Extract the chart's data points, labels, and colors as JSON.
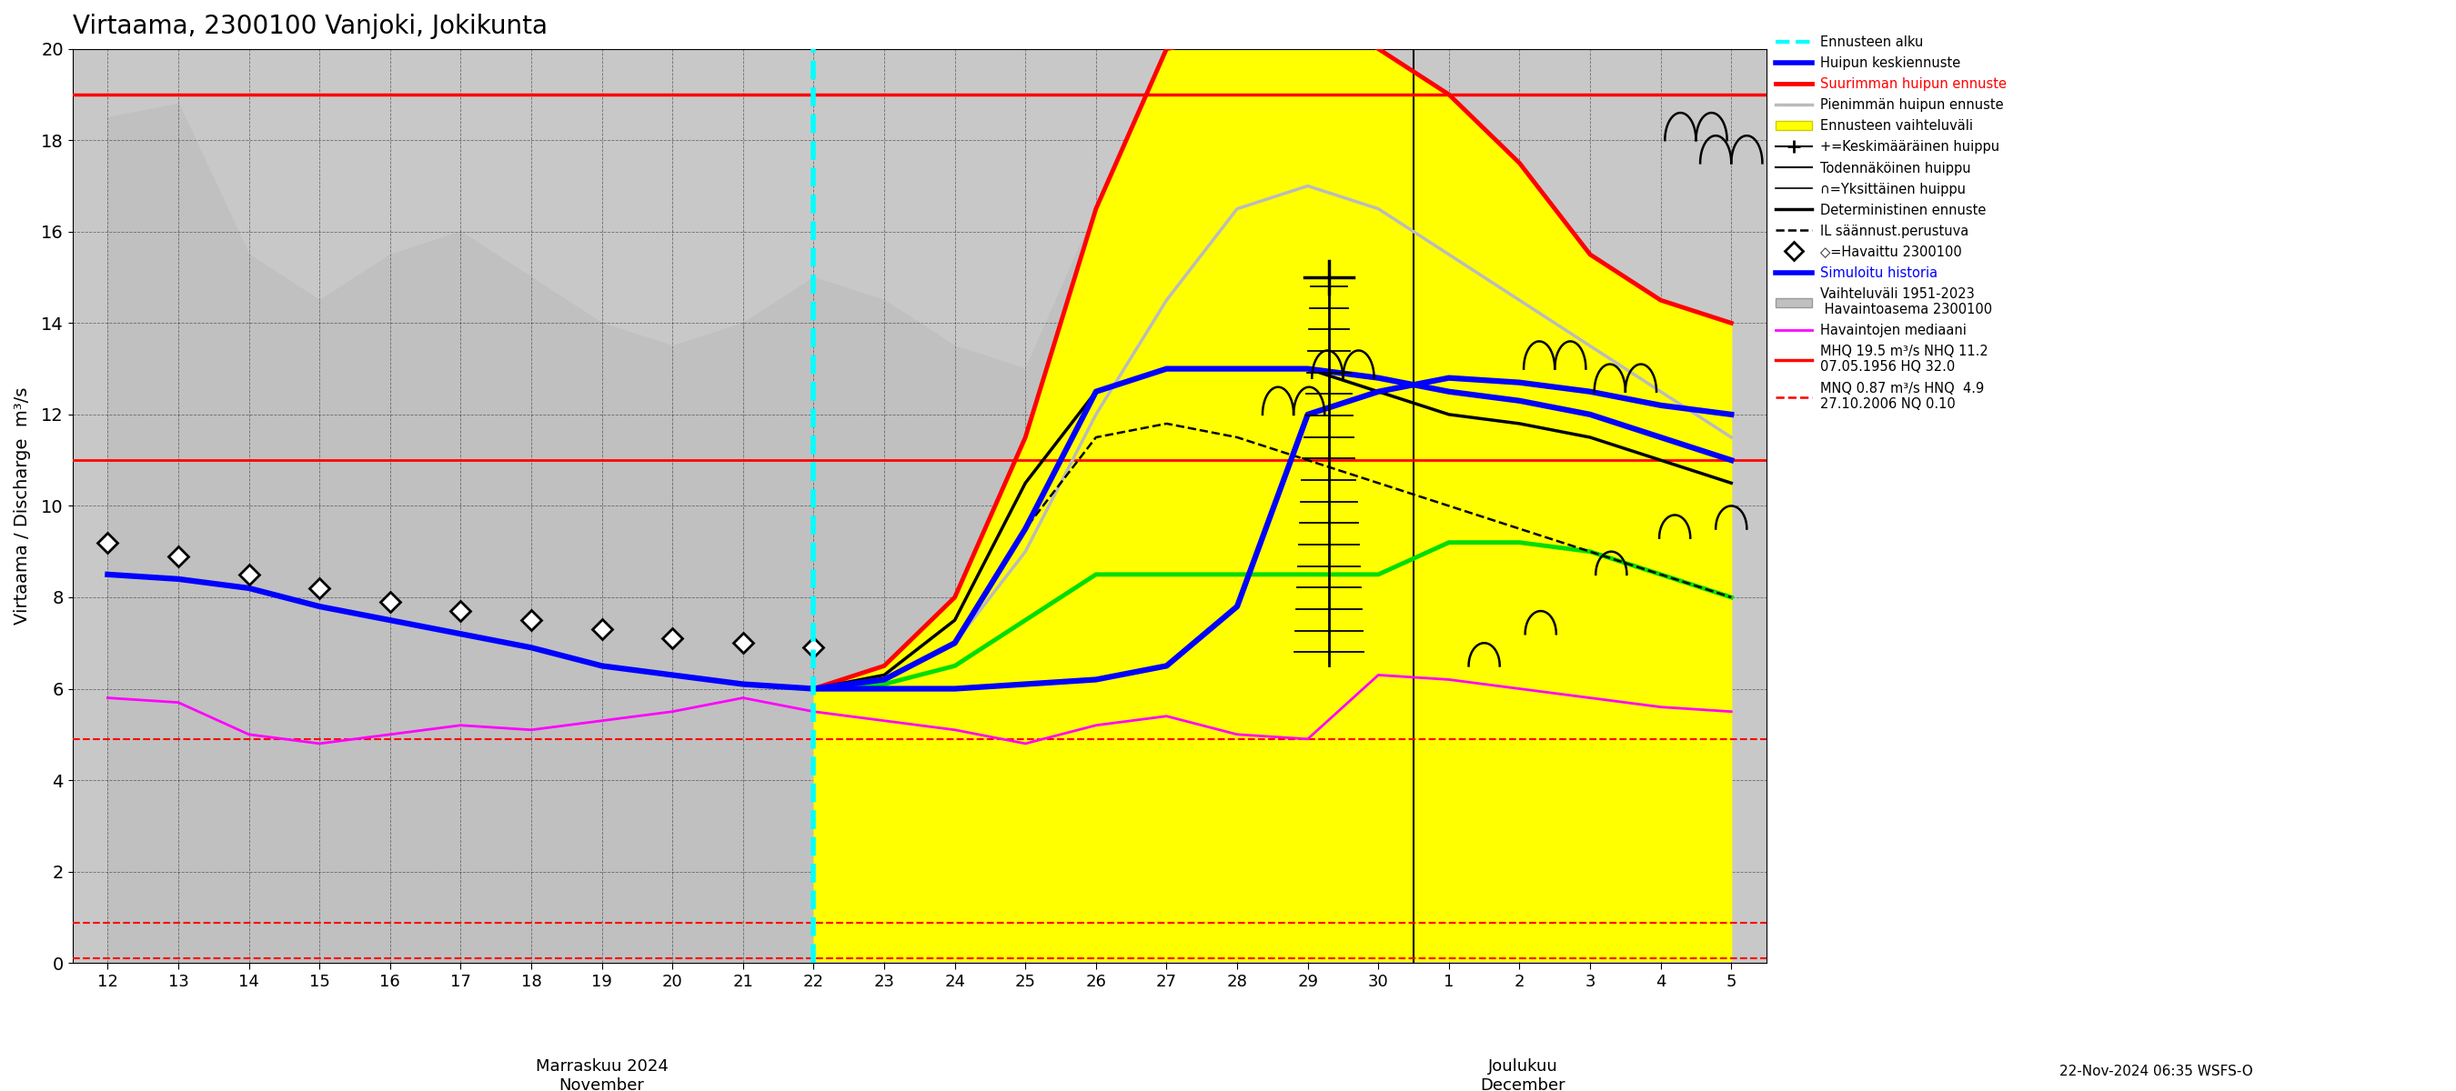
{
  "title": "Virtaama, 2300100 Vanjoki, Jokikunta",
  "ylabel": "Virtaama / Discharge  m³/s",
  "ylim": [
    0,
    20
  ],
  "yticks": [
    0,
    2,
    4,
    6,
    8,
    10,
    12,
    14,
    16,
    18,
    20
  ],
  "bg_color": "#c8c8c8",
  "red_hline_solid": 19.0,
  "red_hline_solid2": 11.0,
  "red_hline_dash1": 4.9,
  "red_hline_dash2": 0.87,
  "red_hline_dash3": 0.1,
  "cyan_vline_x": 10,
  "nov_days": [
    12,
    13,
    14,
    15,
    16,
    17,
    18,
    19,
    20,
    21,
    22,
    23,
    24,
    25,
    26,
    27,
    28,
    29,
    30
  ],
  "dec_days": [
    1,
    2,
    3,
    4,
    5
  ],
  "hist_upper": [
    18.5,
    18.8,
    15.5,
    14.5,
    15.5,
    16.0,
    15.0,
    14.0,
    13.5,
    14.0,
    15.0,
    14.5,
    13.5,
    13.0,
    16.5,
    16.0,
    15.0,
    14.5,
    14.2,
    14.0,
    13.8,
    13.5,
    13.3,
    13.0
  ],
  "hist_lower": [
    0.05,
    0.05,
    0.05,
    0.05,
    0.05,
    0.05,
    0.05,
    0.05,
    0.05,
    0.05,
    0.05,
    0.05,
    0.05,
    0.05,
    0.05,
    0.05,
    0.05,
    0.05,
    0.05,
    0.05,
    0.05,
    0.05,
    0.05,
    0.05
  ],
  "median_y": [
    5.8,
    5.7,
    5.0,
    4.8,
    5.0,
    5.2,
    5.1,
    5.3,
    5.5,
    5.8,
    5.5,
    5.3,
    5.1,
    4.8,
    5.2,
    5.4,
    5.0,
    4.9,
    6.3,
    6.2,
    6.0,
    5.8,
    5.6,
    5.5
  ],
  "sim_y": [
    8.5,
    8.4,
    8.2,
    7.8,
    7.5,
    7.2,
    6.9,
    6.5,
    6.3,
    6.1,
    6.0,
    6.0,
    6.0,
    6.1,
    6.2,
    6.5,
    7.8,
    12.0,
    12.5,
    12.8,
    12.7,
    12.5,
    12.2,
    12.0
  ],
  "obs_x": [
    0,
    1,
    2,
    3,
    4,
    5,
    6,
    7,
    8,
    9,
    10
  ],
  "obs_y": [
    9.2,
    8.9,
    8.5,
    8.2,
    7.9,
    7.7,
    7.5,
    7.3,
    7.1,
    7.0,
    6.9
  ],
  "yellow_x": [
    10,
    11,
    12,
    13,
    14,
    15,
    16,
    17,
    17.5,
    18,
    19,
    20,
    21,
    22,
    23
  ],
  "yellow_upper": [
    6.0,
    6.5,
    8.0,
    11.5,
    16.5,
    20.0,
    20.3,
    20.5,
    20.5,
    20.0,
    19.0,
    17.5,
    15.5,
    14.5,
    14.0
  ],
  "yellow_lower": [
    0.05,
    0.05,
    0.05,
    0.05,
    0.05,
    0.05,
    0.05,
    0.05,
    0.05,
    0.05,
    0.05,
    0.05,
    0.05,
    0.05,
    0.05
  ],
  "red_curve_x": [
    10,
    11,
    12,
    13,
    14,
    15,
    16,
    17,
    17.5,
    18,
    19,
    20,
    21,
    22,
    23
  ],
  "red_curve_y": [
    6.0,
    6.5,
    8.0,
    11.5,
    16.5,
    20.0,
    20.3,
    20.5,
    20.5,
    20.0,
    19.0,
    17.5,
    15.5,
    14.5,
    14.0
  ],
  "grey_curve_x": [
    10,
    11,
    12,
    13,
    14,
    15,
    16,
    17,
    18,
    19,
    20,
    21,
    22,
    23
  ],
  "grey_curve_y": [
    6.0,
    6.2,
    7.0,
    9.0,
    12.0,
    14.5,
    16.5,
    17.0,
    16.5,
    15.5,
    14.5,
    13.5,
    12.5,
    11.5
  ],
  "green_curve_x": [
    10,
    11,
    12,
    13,
    14,
    15,
    16,
    17,
    18,
    19,
    20,
    21,
    22,
    23
  ],
  "green_curve_y": [
    6.0,
    6.1,
    6.5,
    7.5,
    8.5,
    8.5,
    8.5,
    8.5,
    8.5,
    9.2,
    9.2,
    9.0,
    8.5,
    8.0
  ],
  "blue_curve_x": [
    10,
    11,
    12,
    13,
    14,
    15,
    16,
    17,
    18,
    19,
    20,
    21,
    22,
    23
  ],
  "blue_curve_y": [
    6.0,
    6.2,
    7.0,
    9.5,
    12.5,
    13.0,
    13.0,
    13.0,
    12.8,
    12.5,
    12.3,
    12.0,
    11.5,
    11.0
  ],
  "det_curve_x": [
    10,
    11,
    12,
    13,
    14,
    15,
    16,
    17,
    18,
    19,
    20,
    21,
    22,
    23
  ],
  "det_curve_y": [
    6.0,
    6.3,
    7.5,
    10.5,
    12.5,
    13.0,
    13.0,
    13.0,
    12.5,
    12.0,
    11.8,
    11.5,
    11.0,
    10.5
  ],
  "il_curve_x": [
    10,
    11,
    12,
    13,
    14,
    15,
    16,
    17,
    18,
    19,
    20,
    21,
    22,
    23
  ],
  "il_curve_y": [
    6.0,
    6.2,
    7.0,
    9.5,
    11.5,
    11.8,
    11.5,
    11.0,
    10.5,
    10.0,
    9.5,
    9.0,
    8.5,
    8.0
  ],
  "bottom_text": "22-Nov-2024 06:35 WSFS-O"
}
